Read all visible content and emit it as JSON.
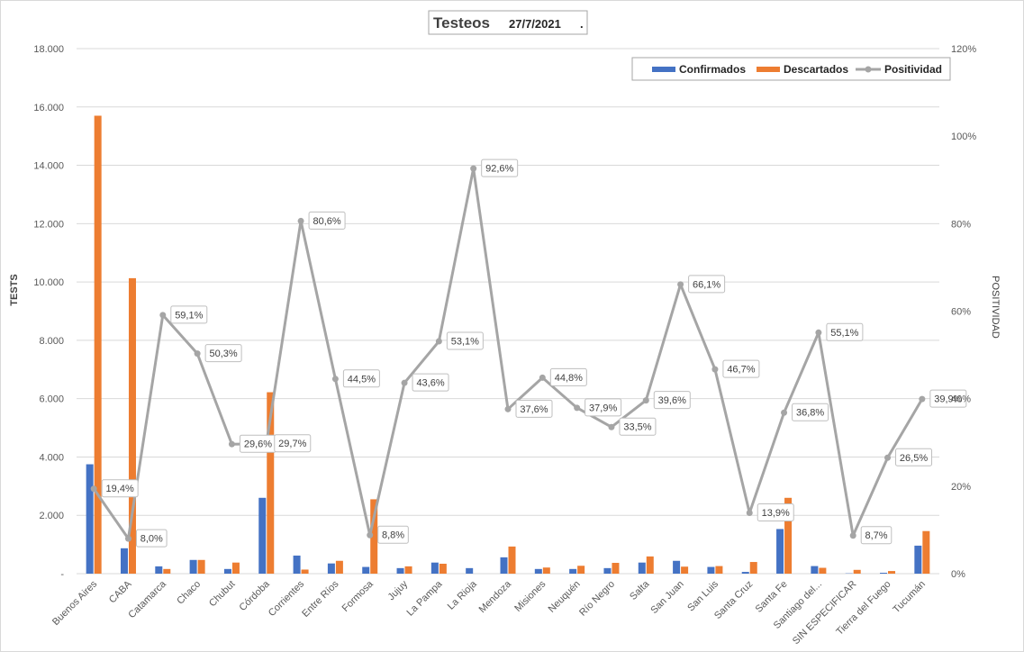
{
  "chart_data": {
    "type": "bar",
    "title": "Testeos",
    "subtitle": "27/7/2021",
    "title_suffix": ".",
    "categories": [
      "Buenos Aires",
      "CABA",
      "Catamarca",
      "Chaco",
      "Chubut",
      "Córdoba",
      "Corrientes",
      "Entre Ríos",
      "Formosa",
      "Jujuy",
      "La Pampa",
      "La Rioja",
      "Mendoza",
      "Misiones",
      "Neuquén",
      "Río Negro",
      "Salta",
      "San Juan",
      "San Luis",
      "Santa Cruz",
      "Santa Fe",
      "Santiago del...",
      "SIN ESPECIFICAR",
      "Tierra del Fuego",
      "Tucumán"
    ],
    "series": [
      {
        "name": "Confirmados",
        "type": "bar",
        "axis": "left",
        "color": "#4472C4",
        "values": [
          3750,
          870,
          250,
          470,
          160,
          2600,
          620,
          350,
          230,
          190,
          380,
          190,
          560,
          160,
          160,
          190,
          380,
          440,
          230,
          60,
          1530,
          260,
          10,
          30,
          960
        ]
      },
      {
        "name": "Descartados",
        "type": "bar",
        "axis": "left",
        "color": "#ED7D31",
        "values": [
          15700,
          10130,
          160,
          470,
          380,
          6220,
          140,
          440,
          2550,
          250,
          340,
          0,
          930,
          210,
          270,
          370,
          590,
          240,
          260,
          400,
          2600,
          200,
          130,
          90,
          1460
        ]
      },
      {
        "name": "Positividad",
        "type": "line",
        "axis": "right",
        "color": "#A5A5A5",
        "values": [
          19.4,
          8.0,
          59.1,
          50.3,
          29.6,
          29.7,
          80.6,
          44.5,
          8.8,
          43.6,
          53.1,
          92.6,
          37.6,
          44.8,
          37.9,
          33.5,
          39.6,
          66.1,
          46.7,
          13.9,
          36.8,
          55.1,
          8.7,
          26.5,
          39.9
        ],
        "labels": [
          "19,4%",
          "8,0%",
          "59,1%",
          "50,3%",
          "29,6%",
          "29,7%",
          "80,6%",
          "44,5%",
          "8,8%",
          "43,6%",
          "53,1%",
          "92,6%",
          "37,6%",
          "44,8%",
          "37,9%",
          "33,5%",
          "39,6%",
          "66,1%",
          "46,7%",
          "13,9%",
          "36,8%",
          "55,1%",
          "8,7%",
          "26,5%",
          "39,9%"
        ]
      }
    ],
    "ylabel": "TESTS",
    "y2label": "POSITIVIDAD",
    "ylim": [
      0,
      18000
    ],
    "y2lim": [
      0,
      120
    ],
    "yticks": [
      0,
      2000,
      4000,
      6000,
      8000,
      10000,
      12000,
      14000,
      16000,
      18000
    ],
    "ytick_labels": [
      "-",
      "2.000",
      "4.000",
      "6.000",
      "8.000",
      "10.000",
      "12.000",
      "14.000",
      "16.000",
      "18.000"
    ],
    "y2ticks": [
      0,
      20,
      40,
      60,
      80,
      100,
      120
    ],
    "y2tick_labels": [
      "0%",
      "20%",
      "40%",
      "60%",
      "80%",
      "100%",
      "120%"
    ],
    "grid": true,
    "legend": "top-right"
  }
}
